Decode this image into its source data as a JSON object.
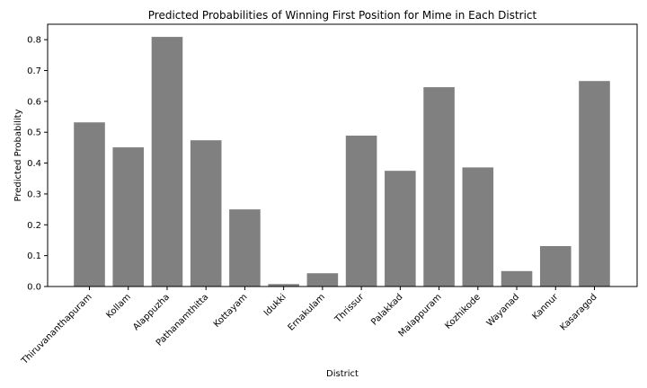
{
  "chart_data": {
    "type": "bar",
    "title": "Predicted Probabilities of Winning First Position for Mime in Each District",
    "xlabel": "District",
    "ylabel": "Predicted Probability",
    "ylim": [
      0,
      0.85
    ],
    "yticks": [
      "0.0",
      "0.1",
      "0.2",
      "0.3",
      "0.4",
      "0.5",
      "0.6",
      "0.7",
      "0.8"
    ],
    "categories": [
      "Thiruvananthapuram",
      "Kollam",
      "Alappuzha",
      "Pathanamthitta",
      "Kottayam",
      "Idukki",
      "Ernakulam",
      "Thrissur",
      "Palakkad",
      "Malappuram",
      "Kozhikode",
      "Wayanad",
      "Kannur",
      "Kasaragod"
    ],
    "values": [
      0.532,
      0.451,
      0.809,
      0.474,
      0.25,
      0.008,
      0.043,
      0.489,
      0.375,
      0.646,
      0.386,
      0.05,
      0.131,
      0.666
    ],
    "bar_color": "#808080",
    "grid": false,
    "legend": "none"
  }
}
